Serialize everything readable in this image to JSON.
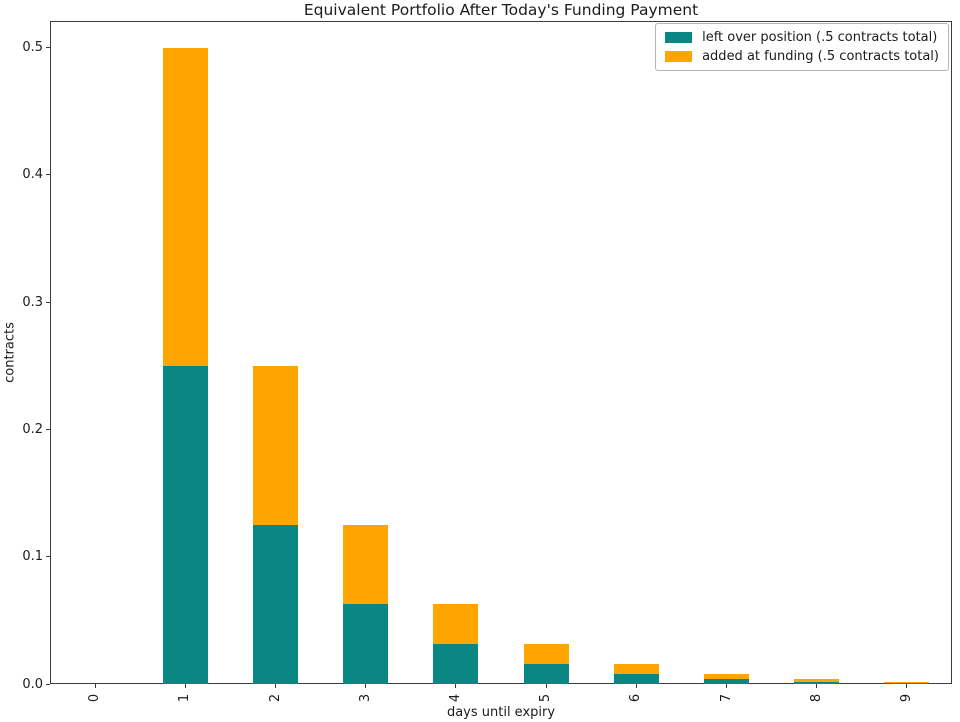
{
  "chart_data": {
    "type": "bar",
    "stacked": true,
    "title": "Equivalent Portfolio After Today's Funding Payment",
    "xlabel": "days until expiry",
    "ylabel": "contracts",
    "categories": [
      "0",
      "1",
      "2",
      "3",
      "4",
      "5",
      "6",
      "7",
      "8",
      "9"
    ],
    "series": [
      {
        "name": "left over position (.5 contracts total)",
        "color": "#0a8683",
        "values": [
          0,
          0.25,
          0.125,
          0.0625,
          0.03125,
          0.015625,
          0.0078125,
          0.00390625,
          0.001953125,
          0.0009765625
        ]
      },
      {
        "name": "added at funding (.5 contracts total)",
        "color": "#ffa500",
        "values": [
          0,
          0.25,
          0.125,
          0.0625,
          0.03125,
          0.015625,
          0.0078125,
          0.00390625,
          0.001953125,
          0.0009765625
        ]
      }
    ],
    "yticks": [
      0.0,
      0.1,
      0.2,
      0.3,
      0.4,
      0.5
    ],
    "ytick_labels": [
      "0.0",
      "0.1",
      "0.2",
      "0.3",
      "0.4",
      "0.5"
    ],
    "ylim": [
      0,
      0.521
    ],
    "grid": false,
    "legend_position": "upper right",
    "background_color": "#ffffff",
    "text_color": "#1c1c1c"
  }
}
